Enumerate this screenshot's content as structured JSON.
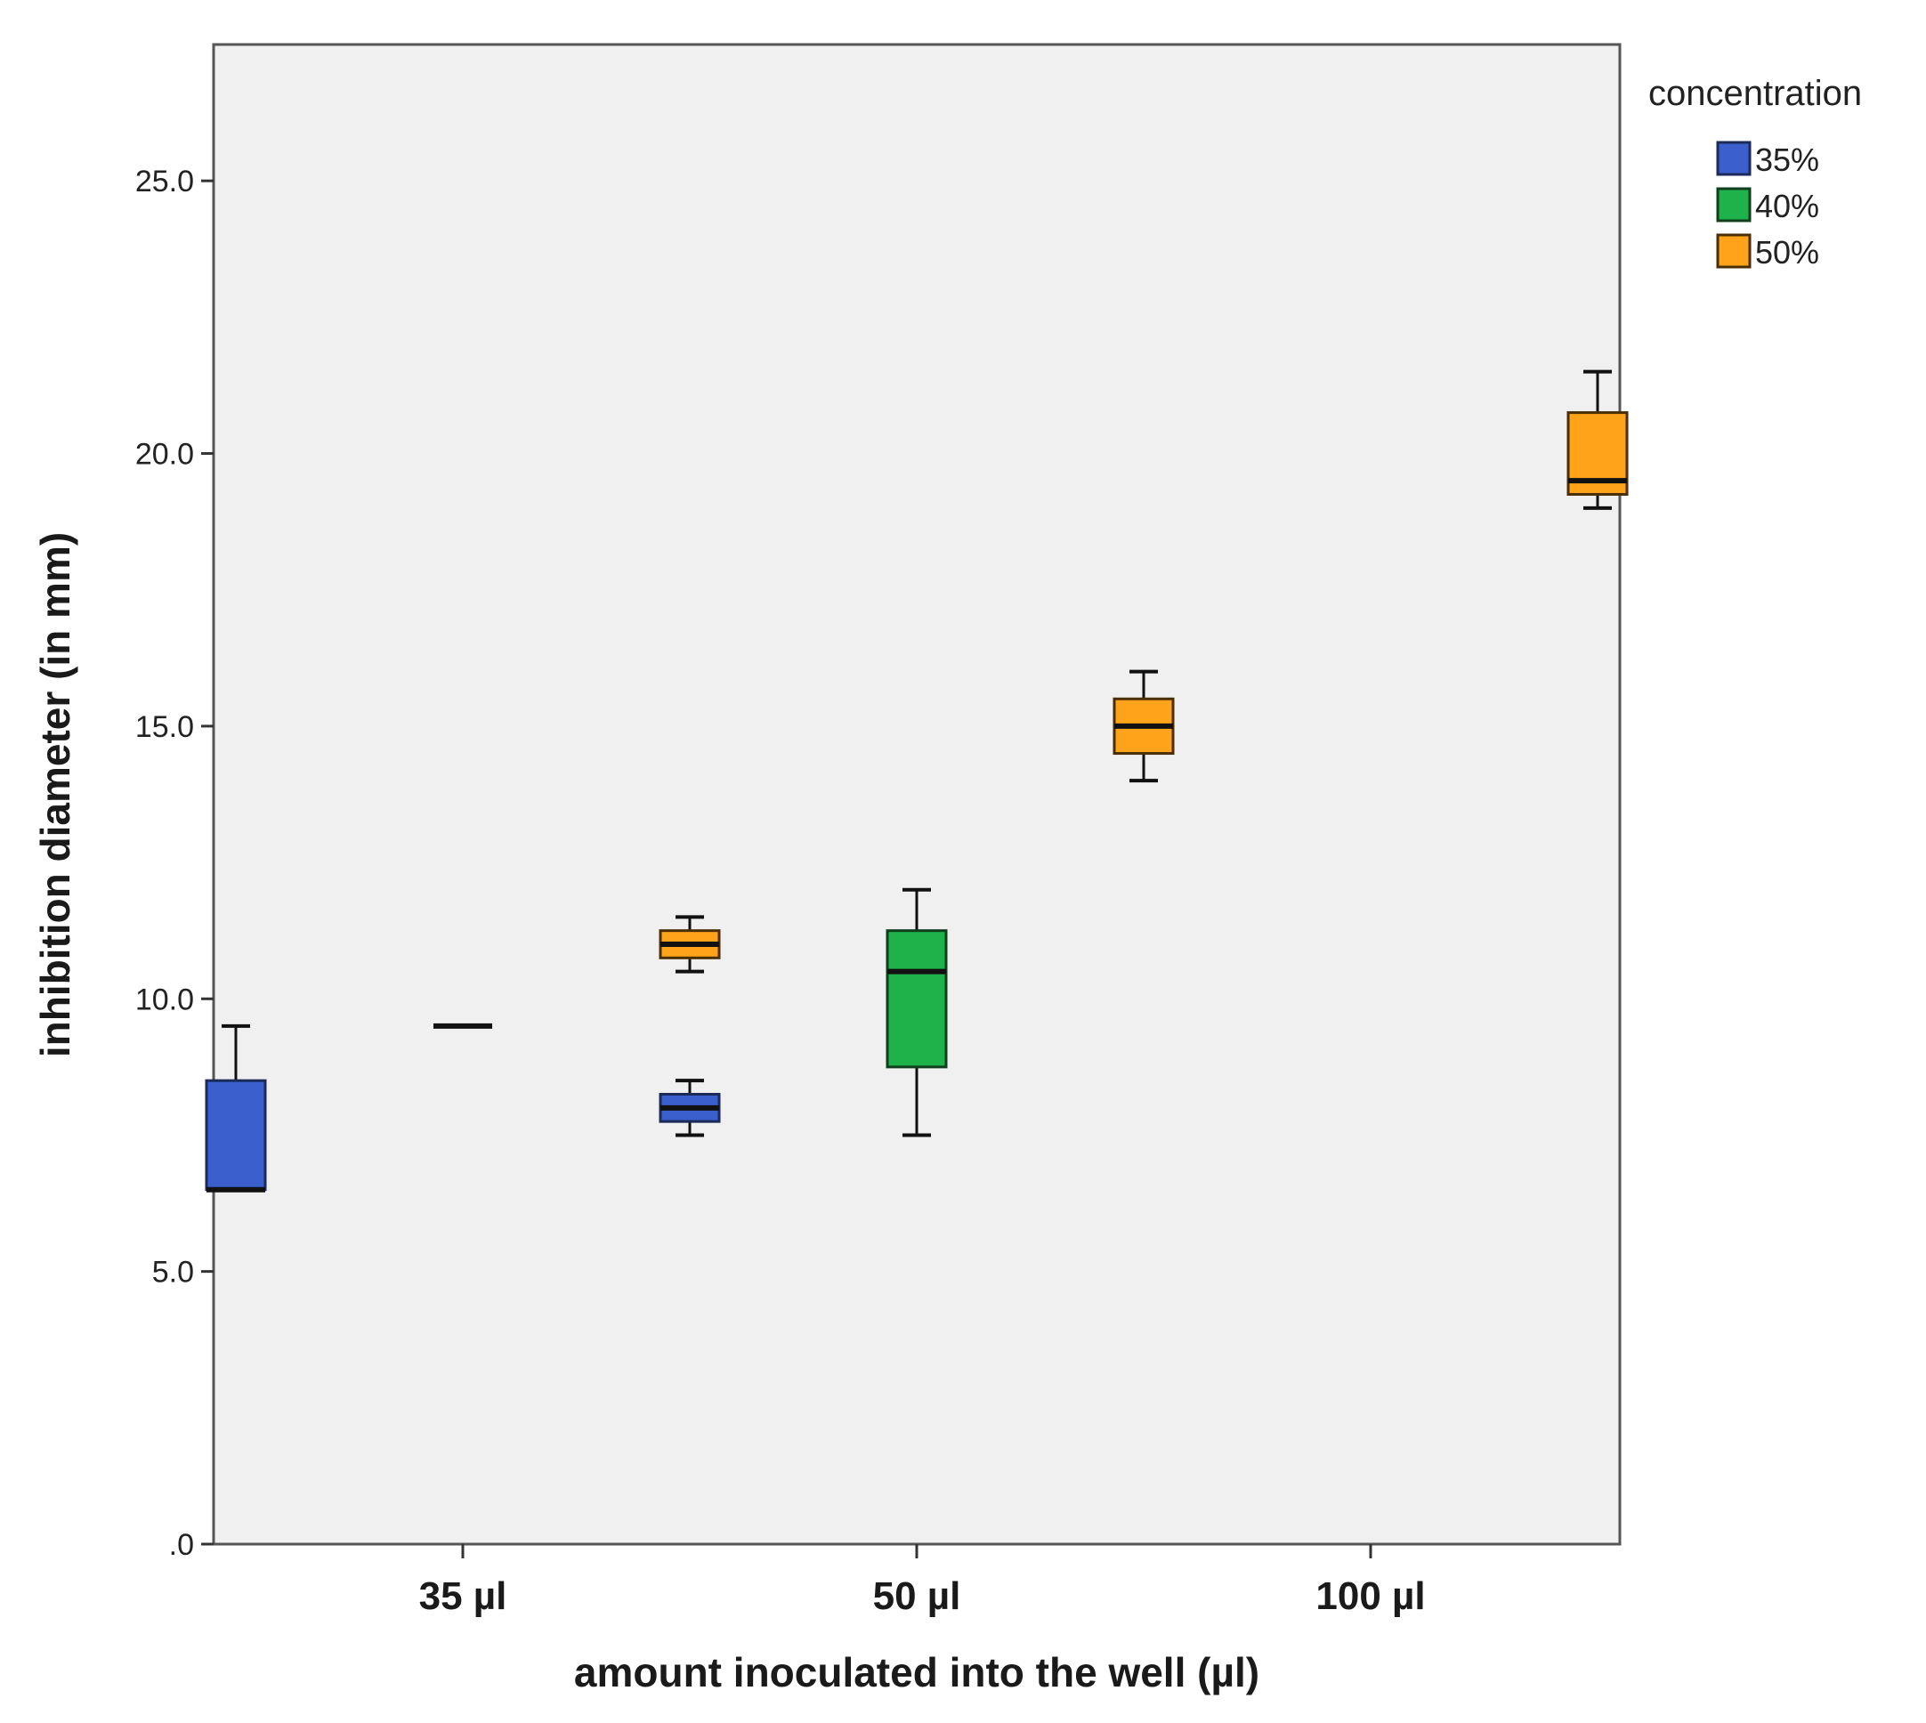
{
  "chart_data": {
    "type": "boxplot",
    "title": "",
    "xlabel": "amount inoculated into the well (µl)",
    "ylabel": "inhibition diameter (in mm)",
    "ylim": [
      0,
      27.5
    ],
    "yticks": [
      0,
      5,
      10,
      15,
      20,
      25
    ],
    "ytick_labels": [
      ".0",
      "5.0",
      "10.0",
      "15.0",
      "20.0",
      "25.0"
    ],
    "grid": false,
    "plot_background": "#f0f0f0",
    "categories": [
      "35 µl",
      "50 µl",
      "100 µl"
    ],
    "legend": {
      "title": "concentration",
      "placement": "right"
    },
    "series": [
      {
        "name": "35%",
        "color": "#3a5fcd",
        "stroke": "#1c2a5a",
        "boxes": [
          {
            "category": "35 µl",
            "whisker_low": 6.5,
            "q1": 6.5,
            "median": 6.5,
            "q3": 8.5,
            "whisker_high": 9.5
          },
          {
            "category": "50 µl",
            "whisker_low": 7.5,
            "q1": 7.75,
            "median": 8.0,
            "q3": 8.25,
            "whisker_high": 8.5
          },
          null
        ]
      },
      {
        "name": "40%",
        "color": "#1fb14a",
        "stroke": "#0f3f1c",
        "boxes": [
          {
            "category": "35 µl",
            "whisker_low": 9.5,
            "q1": 9.5,
            "median": 9.5,
            "q3": 9.5,
            "whisker_high": 9.5
          },
          {
            "category": "50 µl",
            "whisker_low": 7.5,
            "q1": 8.75,
            "median": 10.5,
            "q3": 11.25,
            "whisker_high": 12.0
          },
          null
        ]
      },
      {
        "name": "50%",
        "color": "#ffa31a",
        "stroke": "#4a2e06",
        "boxes": [
          {
            "category": "35 µl",
            "whisker_low": 10.5,
            "q1": 10.75,
            "median": 11.0,
            "q3": 11.25,
            "whisker_high": 11.5
          },
          {
            "category": "50 µl",
            "whisker_low": 14.0,
            "q1": 14.5,
            "median": 15.0,
            "q3": 15.5,
            "whisker_high": 16.0
          },
          {
            "category": "100 µl",
            "whisker_low": 19.0,
            "q1": 19.25,
            "median": 19.5,
            "q3": 20.75,
            "whisker_high": 21.5
          }
        ]
      }
    ]
  }
}
